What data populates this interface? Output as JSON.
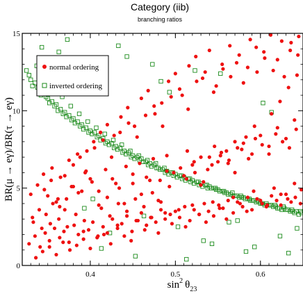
{
  "chart_data": {
    "type": "scatter",
    "title": "Category (iib)",
    "subtitle": "branching ratios",
    "xlabel_base": "sin",
    "xlabel_sup": "2",
    "xlabel_greek": "θ",
    "xlabel_sub": "23",
    "ylabel": "BR(μ → eγ)/BR(τ → eγ)",
    "xlim": [
      0.32,
      0.65
    ],
    "ylim": [
      0,
      15
    ],
    "xticks": [
      0.4,
      0.5,
      0.6
    ],
    "xtick_labels": [
      "0.4",
      "0.5",
      "0.6"
    ],
    "yticks": [
      0,
      5,
      10,
      15
    ],
    "ytick_labels": [
      "0",
      "5",
      "10",
      "15"
    ],
    "grid": false,
    "legend_position": "top-left",
    "series": [
      {
        "name": "normal ordering",
        "marker": "filled-circle",
        "color": "#ee1111",
        "x": [
          0.328,
          0.335,
          0.341,
          0.347,
          0.352,
          0.358,
          0.364,
          0.369,
          0.375,
          0.381,
          0.386,
          0.392,
          0.398,
          0.403,
          0.409,
          0.415,
          0.42,
          0.426,
          0.432,
          0.437,
          0.443,
          0.449,
          0.454,
          0.46,
          0.466,
          0.471,
          0.477,
          0.483,
          0.488,
          0.494,
          0.5,
          0.505,
          0.511,
          0.517,
          0.522,
          0.528,
          0.534,
          0.539,
          0.545,
          0.551,
          0.556,
          0.562,
          0.568,
          0.573,
          0.579,
          0.585,
          0.59,
          0.596,
          0.602,
          0.607,
          0.613,
          0.619,
          0.624,
          0.63,
          0.636,
          0.641,
          0.647,
          0.33,
          0.338,
          0.346,
          0.354,
          0.362,
          0.37,
          0.378,
          0.386,
          0.394,
          0.402,
          0.41,
          0.418,
          0.426,
          0.434,
          0.442,
          0.45,
          0.458,
          0.466,
          0.474,
          0.482,
          0.49,
          0.498,
          0.506,
          0.514,
          0.522,
          0.53,
          0.538,
          0.546,
          0.554,
          0.562,
          0.57,
          0.578,
          0.586,
          0.594,
          0.602,
          0.61,
          0.618,
          0.626,
          0.634,
          0.642,
          0.332,
          0.34,
          0.348,
          0.356,
          0.364,
          0.372,
          0.38,
          0.388,
          0.396,
          0.404,
          0.412,
          0.42,
          0.428,
          0.436,
          0.444,
          0.452,
          0.46,
          0.468,
          0.476,
          0.484,
          0.492,
          0.5,
          0.508,
          0.516,
          0.524,
          0.532,
          0.54,
          0.548,
          0.556,
          0.564,
          0.572,
          0.58,
          0.588,
          0.596,
          0.604,
          0.612,
          0.62,
          0.628,
          0.636,
          0.644,
          0.336,
          0.344,
          0.352,
          0.36,
          0.368,
          0.376,
          0.384,
          0.392,
          0.4,
          0.408,
          0.416,
          0.424,
          0.432,
          0.44,
          0.448,
          0.456,
          0.464,
          0.472,
          0.48,
          0.488,
          0.496,
          0.504,
          0.512,
          0.52,
          0.528,
          0.536,
          0.544,
          0.552,
          0.56,
          0.568,
          0.576,
          0.584,
          0.592,
          0.6,
          0.608,
          0.616,
          0.624,
          0.632,
          0.64,
          0.648,
          0.345,
          0.355,
          0.365,
          0.375,
          0.385,
          0.395,
          0.405,
          0.415,
          0.425,
          0.435,
          0.445,
          0.455,
          0.465,
          0.475,
          0.485,
          0.495,
          0.505,
          0.515,
          0.525,
          0.535,
          0.545,
          0.555,
          0.565,
          0.575,
          0.585,
          0.595,
          0.605,
          0.615,
          0.625,
          0.635,
          0.645,
          0.35,
          0.36,
          0.37,
          0.38,
          0.39,
          0.4,
          0.41,
          0.42,
          0.43,
          0.44,
          0.45,
          0.46,
          0.47,
          0.48,
          0.49,
          0.51,
          0.52,
          0.53,
          0.54,
          0.55,
          0.56,
          0.57,
          0.58,
          0.59,
          0.6,
          0.61,
          0.62,
          0.63,
          0.64,
          0.333,
          0.343,
          0.353,
          0.363,
          0.373,
          0.383,
          0.393,
          0.413,
          0.423,
          0.433,
          0.443,
          0.453,
          0.463,
          0.473,
          0.483,
          0.493,
          0.513,
          0.523,
          0.533,
          0.543,
          0.553,
          0.563,
          0.573,
          0.583,
          0.593,
          0.613,
          0.623,
          0.633,
          0.643
        ],
        "y": [
          1.4,
          1.9,
          1.2,
          2.1,
          1.6,
          2.4,
          1.8,
          2.2,
          1.5,
          2.6,
          2.0,
          1.7,
          2.3,
          2.8,
          1.9,
          2.5,
          2.1,
          3.0,
          2.4,
          2.7,
          3.2,
          2.2,
          2.9,
          3.4,
          2.6,
          3.1,
          2.8,
          3.6,
          3.0,
          3.3,
          3.5,
          3.1,
          3.8,
          2.9,
          3.6,
          3.3,
          4.0,
          3.5,
          3.2,
          3.9,
          3.7,
          4.2,
          3.4,
          4.1,
          3.8,
          4.4,
          3.6,
          4.3,
          4.0,
          3.8,
          4.5,
          4.2,
          3.9,
          4.6,
          4.1,
          4.4,
          4.0,
          4.6,
          5.2,
          4.9,
          5.5,
          4.3,
          5.8,
          5.1,
          4.7,
          6.0,
          5.4,
          4.8,
          6.2,
          5.6,
          5.0,
          6.4,
          5.3,
          6.6,
          5.7,
          6.9,
          5.5,
          7.1,
          6.0,
          6.3,
          7.4,
          6.7,
          7.0,
          6.2,
          7.7,
          7.3,
          6.6,
          8.0,
          7.5,
          6.9,
          8.2,
          7.8,
          7.2,
          8.5,
          8.0,
          7.6,
          8.8,
          3.1,
          3.6,
          3.3,
          4.0,
          3.8,
          4.3,
          6.5,
          7.0,
          7.4,
          8.0,
          8.6,
          9.1,
          8.4,
          9.6,
          10.2,
          9.0,
          10.8,
          11.3,
          9.8,
          10.5,
          11.9,
          12.4,
          11.0,
          12.9,
          13.5,
          12.1,
          13.9,
          11.6,
          12.7,
          14.2,
          13.1,
          11.8,
          14.6,
          12.5,
          13.8,
          14.9,
          13.3,
          12.2,
          14.4,
          13.6,
          0.5,
          0.9,
          1.2,
          0.7,
          1.5,
          1.0,
          1.3,
          2.2,
          1.1,
          1.8,
          2.0,
          1.4,
          2.6,
          1.9,
          1.6,
          2.9,
          2.3,
          3.1,
          2.1,
          3.4,
          2.7,
          3.6,
          2.5,
          3.9,
          3.3,
          2.8,
          4.1,
          3.7,
          3.0,
          4.4,
          4.0,
          3.5,
          4.8,
          4.2,
          3.9,
          5.0,
          4.6,
          4.3,
          5.3,
          4.9,
          5.9,
          6.3,
          5.7,
          6.8,
          7.2,
          6.1,
          7.6,
          8.1,
          7.0,
          8.6,
          9.2,
          8.3,
          9.7,
          10.3,
          9.0,
          10.9,
          11.4,
          10.1,
          11.9,
          12.5,
          11.2,
          13.0,
          12.2,
          13.6,
          12.8,
          14.1,
          13.4,
          12.6,
          14.5,
          13.9,
          14.8,
          4.5,
          4.1,
          3.6,
          5.1,
          4.8,
          5.6,
          3.9,
          4.4,
          5.3,
          4.0,
          5.9,
          4.6,
          5.5,
          4.2,
          6.1,
          5.8,
          6.5,
          5.2,
          7.0,
          6.7,
          7.4,
          6.0,
          7.9,
          7.2,
          8.4,
          7.7,
          8.9,
          8.2,
          9.4,
          2.8,
          2.4,
          2.7,
          3.0,
          2.5,
          3.3,
          2.9,
          3.7,
          3.2,
          4.0,
          3.5,
          4.3,
          3.8,
          4.7,
          4.1,
          5.1,
          5.6,
          6.0,
          5.4,
          6.5,
          7.1,
          6.8,
          7.6,
          8.3,
          9.0,
          9.8,
          10.6,
          11.5,
          12.3
        ]
      },
      {
        "name": "inverted ordering",
        "marker": "open-square",
        "color": "#1a8a1a",
        "x": [
          0.325,
          0.33,
          0.335,
          0.34,
          0.345,
          0.35,
          0.355,
          0.36,
          0.365,
          0.37,
          0.375,
          0.38,
          0.385,
          0.39,
          0.395,
          0.4,
          0.405,
          0.41,
          0.415,
          0.42,
          0.425,
          0.43,
          0.435,
          0.44,
          0.445,
          0.45,
          0.455,
          0.46,
          0.465,
          0.47,
          0.475,
          0.48,
          0.485,
          0.49,
          0.495,
          0.5,
          0.505,
          0.51,
          0.515,
          0.52,
          0.525,
          0.53,
          0.535,
          0.54,
          0.545,
          0.55,
          0.555,
          0.56,
          0.565,
          0.57,
          0.575,
          0.58,
          0.585,
          0.59,
          0.595,
          0.6,
          0.605,
          0.61,
          0.615,
          0.62,
          0.625,
          0.63,
          0.635,
          0.64,
          0.645,
          0.328,
          0.338,
          0.348,
          0.358,
          0.368,
          0.378,
          0.388,
          0.398,
          0.408,
          0.418,
          0.428,
          0.438,
          0.448,
          0.458,
          0.468,
          0.478,
          0.488,
          0.498,
          0.508,
          0.518,
          0.528,
          0.538,
          0.548,
          0.558,
          0.568,
          0.578,
          0.588,
          0.598,
          0.608,
          0.618,
          0.628,
          0.638,
          0.648,
          0.332,
          0.342,
          0.352,
          0.362,
          0.372,
          0.382,
          0.392,
          0.402,
          0.412,
          0.422,
          0.432,
          0.442,
          0.452,
          0.462,
          0.472,
          0.482,
          0.492,
          0.502,
          0.512,
          0.522,
          0.532,
          0.542,
          0.552,
          0.562,
          0.572,
          0.582,
          0.592,
          0.602,
          0.612,
          0.622,
          0.632,
          0.642,
          0.337,
          0.347,
          0.357,
          0.367,
          0.377,
          0.387,
          0.397,
          0.407,
          0.417,
          0.427,
          0.437,
          0.447,
          0.457,
          0.467,
          0.477,
          0.487,
          0.497,
          0.507,
          0.517,
          0.527,
          0.537,
          0.547,
          0.557,
          0.567,
          0.577,
          0.587,
          0.597,
          0.607,
          0.617,
          0.627,
          0.637,
          0.647,
          0.343,
          0.363,
          0.383,
          0.403,
          0.423,
          0.443,
          0.463,
          0.483,
          0.503,
          0.523,
          0.543,
          0.563,
          0.583,
          0.603,
          0.623,
          0.643,
          0.353,
          0.373,
          0.393,
          0.413,
          0.433,
          0.453,
          0.473,
          0.493,
          0.513,
          0.533,
          0.553,
          0.573,
          0.593,
          0.613,
          0.633
        ],
        "y": [
          12.6,
          12.0,
          11.8,
          11.4,
          11.1,
          10.8,
          10.6,
          10.4,
          10.1,
          9.9,
          9.7,
          9.5,
          9.3,
          9.1,
          8.9,
          8.7,
          8.6,
          8.4,
          8.2,
          8.0,
          7.9,
          7.7,
          7.6,
          7.4,
          7.3,
          7.1,
          7.0,
          6.9,
          6.7,
          6.6,
          6.5,
          6.3,
          6.2,
          6.1,
          6.0,
          5.9,
          5.8,
          5.7,
          5.6,
          5.5,
          5.4,
          5.3,
          5.2,
          5.1,
          5.0,
          4.9,
          4.8,
          4.7,
          4.6,
          4.5,
          4.4,
          4.4,
          4.3,
          4.2,
          4.1,
          4.0,
          3.9,
          3.9,
          3.8,
          3.7,
          3.6,
          3.6,
          3.5,
          3.4,
          3.3,
          12.3,
          11.5,
          10.9,
          10.3,
          9.8,
          9.4,
          9.0,
          8.6,
          8.3,
          7.9,
          7.6,
          7.3,
          7.0,
          6.8,
          6.5,
          6.3,
          6.0,
          5.8,
          5.6,
          5.4,
          5.2,
          5.0,
          4.9,
          4.7,
          4.5,
          4.4,
          4.2,
          4.1,
          3.9,
          3.8,
          3.7,
          3.5,
          3.4,
          11.6,
          11.0,
          10.5,
          10.0,
          9.6,
          9.2,
          8.8,
          8.5,
          8.1,
          7.8,
          7.5,
          7.2,
          6.9,
          6.7,
          6.4,
          6.2,
          5.9,
          5.7,
          5.5,
          5.3,
          5.1,
          5.0,
          4.8,
          4.6,
          4.5,
          4.3,
          4.2,
          4.0,
          3.9,
          3.7,
          3.6,
          3.5,
          12.9,
          12.2,
          11.5,
          10.9,
          10.3,
          9.8,
          9.3,
          8.9,
          8.5,
          8.1,
          7.8,
          7.4,
          7.1,
          6.8,
          6.6,
          6.3,
          6.0,
          5.8,
          5.6,
          5.4,
          5.2,
          5.0,
          4.8,
          4.7,
          4.5,
          4.3,
          4.2,
          4.0,
          3.9,
          3.8,
          3.6,
          3.5,
          14.1,
          13.8,
          12.9,
          4.3,
          2.1,
          13.5,
          3.2,
          11.9,
          2.5,
          12.6,
          1.4,
          2.8,
          0.9,
          10.5,
          1.9,
          2.4,
          13.2,
          14.6,
          3.7,
          1.1,
          14.2,
          0.6,
          13.0,
          11.2,
          0.4,
          1.6,
          12.4,
          2.9,
          1.2,
          9.9,
          0.8
        ]
      }
    ]
  }
}
